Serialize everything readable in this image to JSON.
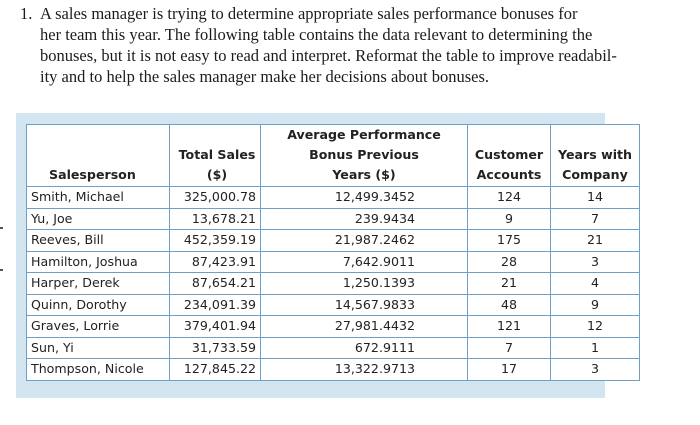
{
  "problem": {
    "number": "1.",
    "lines": [
      "A sales manager is trying to determine appropriate sales performance bonuses for",
      "her team this year. The following table contains the data relevant to determining the",
      "bonuses, but it is not easy to read and interpret. Reformat the table to improve readabil-",
      "ity and to help the sales manager make her decisions about bonuses."
    ]
  },
  "table": {
    "headers": {
      "salesperson": "Salesperson",
      "total_sales": [
        "Total Sales",
        "($)"
      ],
      "bonus": [
        "Average Performance",
        "Bonus Previous",
        "Years ($)"
      ],
      "accounts": [
        "Customer",
        "Accounts"
      ],
      "years": [
        "Years with",
        "Company"
      ]
    },
    "rows": [
      {
        "name": "Smith, Michael",
        "sales": "325,000.78",
        "bonus": "12,499.3452",
        "accounts": "124",
        "years": "14"
      },
      {
        "name": "Yu, Joe",
        "sales": "13,678.21",
        "bonus": "239.9434",
        "accounts": "9",
        "years": "7"
      },
      {
        "name": "Reeves, Bill",
        "sales": "452,359.19",
        "bonus": "21,987.2462",
        "accounts": "175",
        "years": "21"
      },
      {
        "name": "Hamilton, Joshua",
        "sales": "87,423.91",
        "bonus": "7,642.9011",
        "accounts": "28",
        "years": "3"
      },
      {
        "name": "Harper, Derek",
        "sales": "87,654.21",
        "bonus": "1,250.1393",
        "accounts": "21",
        "years": "4"
      },
      {
        "name": "Quinn, Dorothy",
        "sales": "234,091.39",
        "bonus": "14,567.9833",
        "accounts": "48",
        "years": "9"
      },
      {
        "name": "Graves, Lorrie",
        "sales": "379,401.94",
        "bonus": "27,981.4432",
        "accounts": "121",
        "years": "12"
      },
      {
        "name": "Sun, Yi",
        "sales": "31,733.59",
        "bonus": "672.9111",
        "accounts": "7",
        "years": "1"
      },
      {
        "name": "Thompson, Nicole",
        "sales": "127,845.22",
        "bonus": "13,322.9713",
        "accounts": "17",
        "years": "3"
      }
    ]
  }
}
